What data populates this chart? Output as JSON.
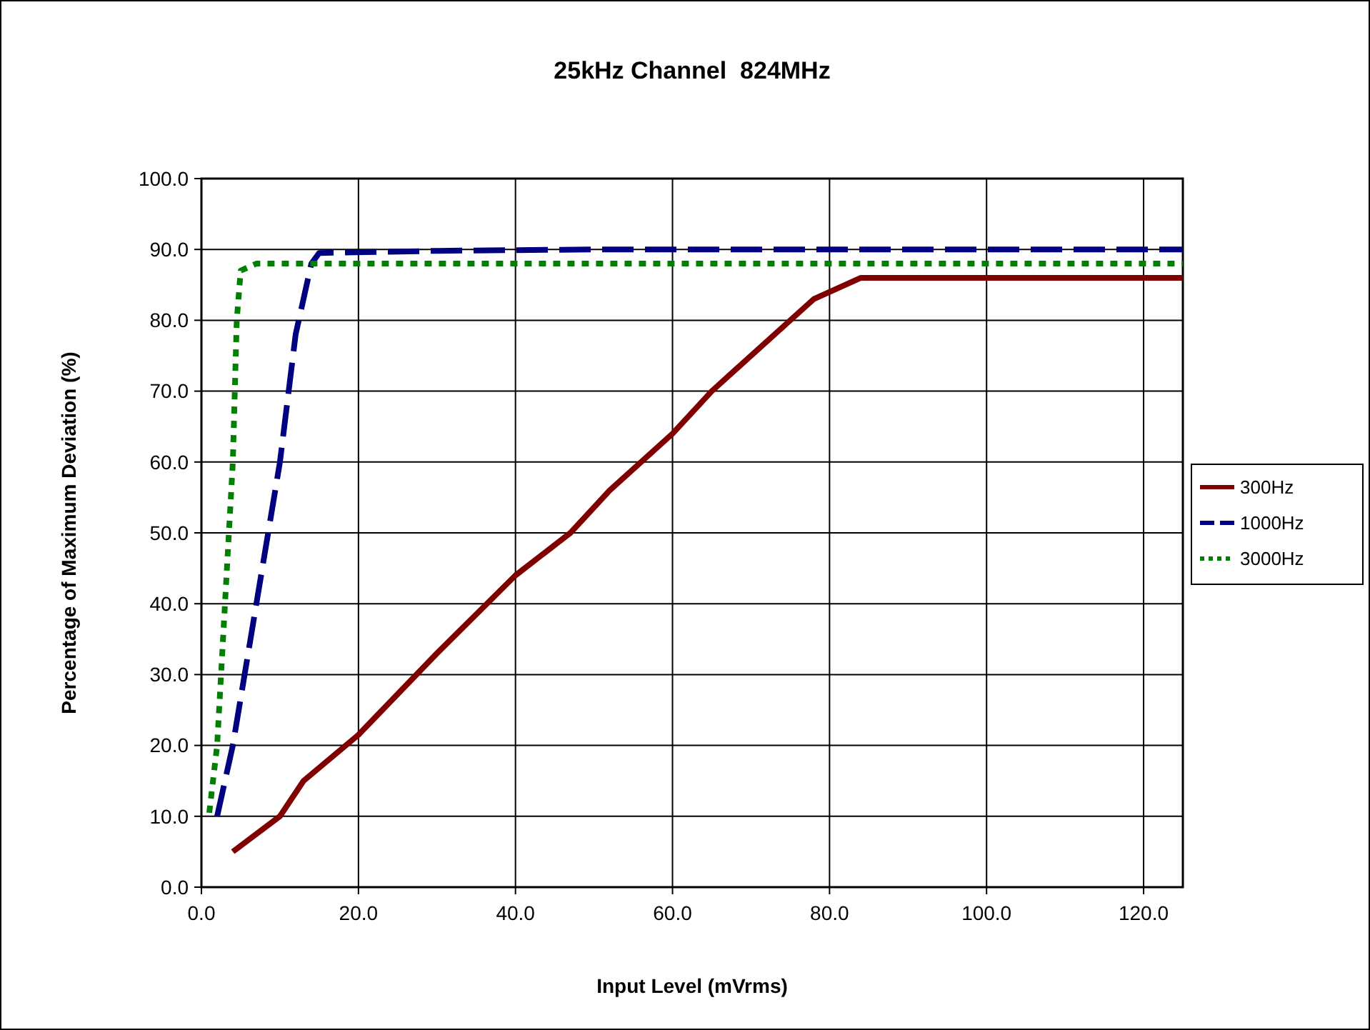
{
  "chart_data": {
    "type": "line",
    "title": "25kHz Channel  824MHz",
    "xlabel": "Input Level (mVrms)",
    "ylabel": "Percentage of Maximum Deviation (%)",
    "xlim": [
      0,
      125
    ],
    "ylim": [
      0,
      100
    ],
    "xticks": [
      {
        "value": 0,
        "label": "0.0"
      },
      {
        "value": 20,
        "label": "20.0"
      },
      {
        "value": 40,
        "label": "40.0"
      },
      {
        "value": 60,
        "label": "60.0"
      },
      {
        "value": 80,
        "label": "80.0"
      },
      {
        "value": 100,
        "label": "100.0"
      },
      {
        "value": 120,
        "label": "120.0"
      }
    ],
    "yticks": [
      {
        "value": 0,
        "label": "0.0"
      },
      {
        "value": 10,
        "label": "10.0"
      },
      {
        "value": 20,
        "label": "20.0"
      },
      {
        "value": 30,
        "label": "30.0"
      },
      {
        "value": 40,
        "label": "40.0"
      },
      {
        "value": 50,
        "label": "50.0"
      },
      {
        "value": 60,
        "label": "60.0"
      },
      {
        "value": 70,
        "label": "70.0"
      },
      {
        "value": 80,
        "label": "80.0"
      },
      {
        "value": 90,
        "label": "90.0"
      },
      {
        "value": 100,
        "label": "100.0"
      }
    ],
    "grid": true,
    "legend": "right",
    "series": [
      {
        "name": "300Hz",
        "color": "#800000",
        "line_style": "solid",
        "x": [
          4,
          10,
          13,
          20,
          30,
          40,
          47,
          52,
          60,
          65,
          75,
          78,
          84,
          125
        ],
        "values": [
          5,
          10,
          15,
          21.5,
          33,
          44,
          50,
          56,
          64,
          70,
          80,
          83,
          86,
          86
        ]
      },
      {
        "name": "1000Hz",
        "color": "#000080",
        "line_style": "dashed",
        "x": [
          2,
          4,
          7,
          10,
          12,
          14,
          15,
          30,
          50,
          125
        ],
        "values": [
          10,
          20,
          40,
          60,
          78,
          88,
          89.5,
          89.8,
          90,
          90
        ]
      },
      {
        "name": "3000Hz",
        "color": "#008000",
        "line_style": "dotted",
        "x": [
          1,
          2,
          3,
          4,
          4.5,
          5,
          7,
          125
        ],
        "values": [
          10.5,
          20,
          40,
          60,
          80,
          87,
          88,
          88
        ]
      }
    ]
  }
}
